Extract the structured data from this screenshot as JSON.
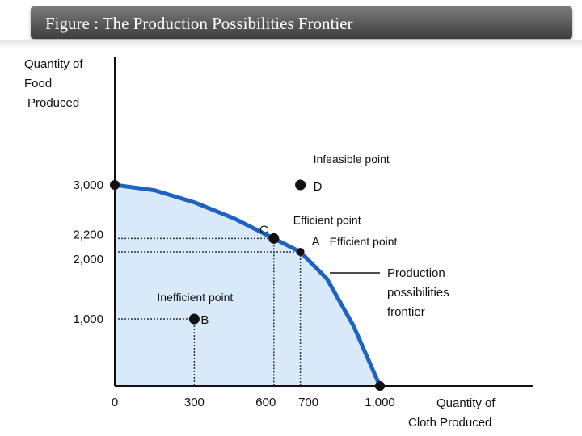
{
  "header": {
    "title": "Figure : The Production Possibilities Frontier"
  },
  "chart_data": {
    "type": "line",
    "ylabel": [
      "Quantity of",
      "Food",
      "Produced"
    ],
    "xlabel": [
      "Quantity of",
      "Cloth Produced"
    ],
    "x_ticks": [
      {
        "value": 0,
        "label": "0"
      },
      {
        "value": 300,
        "label": "300"
      },
      {
        "value": 600,
        "label": "600"
      },
      {
        "value": 700,
        "label": "700"
      },
      {
        "value": 1000,
        "label": "1,000"
      }
    ],
    "y_ticks": [
      {
        "value": 1000,
        "label": "1,000"
      },
      {
        "value": 2000,
        "label": "2,000"
      },
      {
        "value": 2200,
        "label": "2,200"
      },
      {
        "value": 3000,
        "label": "3,000"
      }
    ],
    "frontier": {
      "name": "Production possibilities frontier",
      "label_lines": [
        "Production",
        "possibilities",
        "frontier"
      ],
      "x": [
        0,
        150,
        300,
        450,
        600,
        700,
        800,
        900,
        1000
      ],
      "y": [
        3000,
        2920,
        2740,
        2500,
        2200,
        2000,
        1600,
        900,
        0
      ]
    },
    "points": [
      {
        "id": "A",
        "label": "A",
        "note": "Efficient point",
        "x": 700,
        "y": 2000
      },
      {
        "id": "B",
        "label": "B",
        "note": "Inefficient point",
        "x": 300,
        "y": 1000
      },
      {
        "id": "C",
        "label": "C",
        "note": "Efficient point",
        "x": 600,
        "y": 2200
      },
      {
        "id": "D",
        "label": "D",
        "note": "Infeasible point",
        "x": 700,
        "y": 3000
      }
    ],
    "colors": {
      "frontier": "#1f63c0",
      "fill": "#d8e9fa",
      "point": "#111111"
    }
  }
}
